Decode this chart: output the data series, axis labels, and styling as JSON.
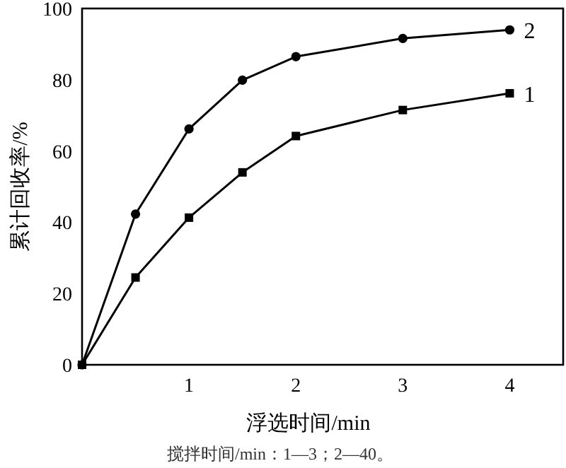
{
  "chart_data": {
    "type": "line",
    "xlabel": "浮选时间/min",
    "ylabel": "累计回收率/%",
    "annotations": [
      "搅拌时间/min：1—3；2—40。"
    ],
    "xlim": [
      0,
      4.5
    ],
    "ylim": [
      0,
      100
    ],
    "xticks": [
      1,
      2,
      3,
      4
    ],
    "yticks": [
      0,
      20,
      40,
      60,
      80,
      100
    ],
    "grid": false,
    "line_style": "solid",
    "series": [
      {
        "name": "1",
        "color": "#000000",
        "marker": "square",
        "x": [
          0,
          0.5,
          1,
          1.5,
          2,
          3,
          4
        ],
        "values": [
          0,
          24.5,
          41.3,
          54,
          64.2,
          71.5,
          76.2
        ]
      },
      {
        "name": "2",
        "color": "#000000",
        "marker": "circle",
        "x": [
          0,
          0.5,
          1,
          1.5,
          2,
          3,
          4
        ],
        "values": [
          0,
          42.3,
          66.2,
          79.9,
          86.5,
          91.6,
          94
        ]
      }
    ]
  }
}
